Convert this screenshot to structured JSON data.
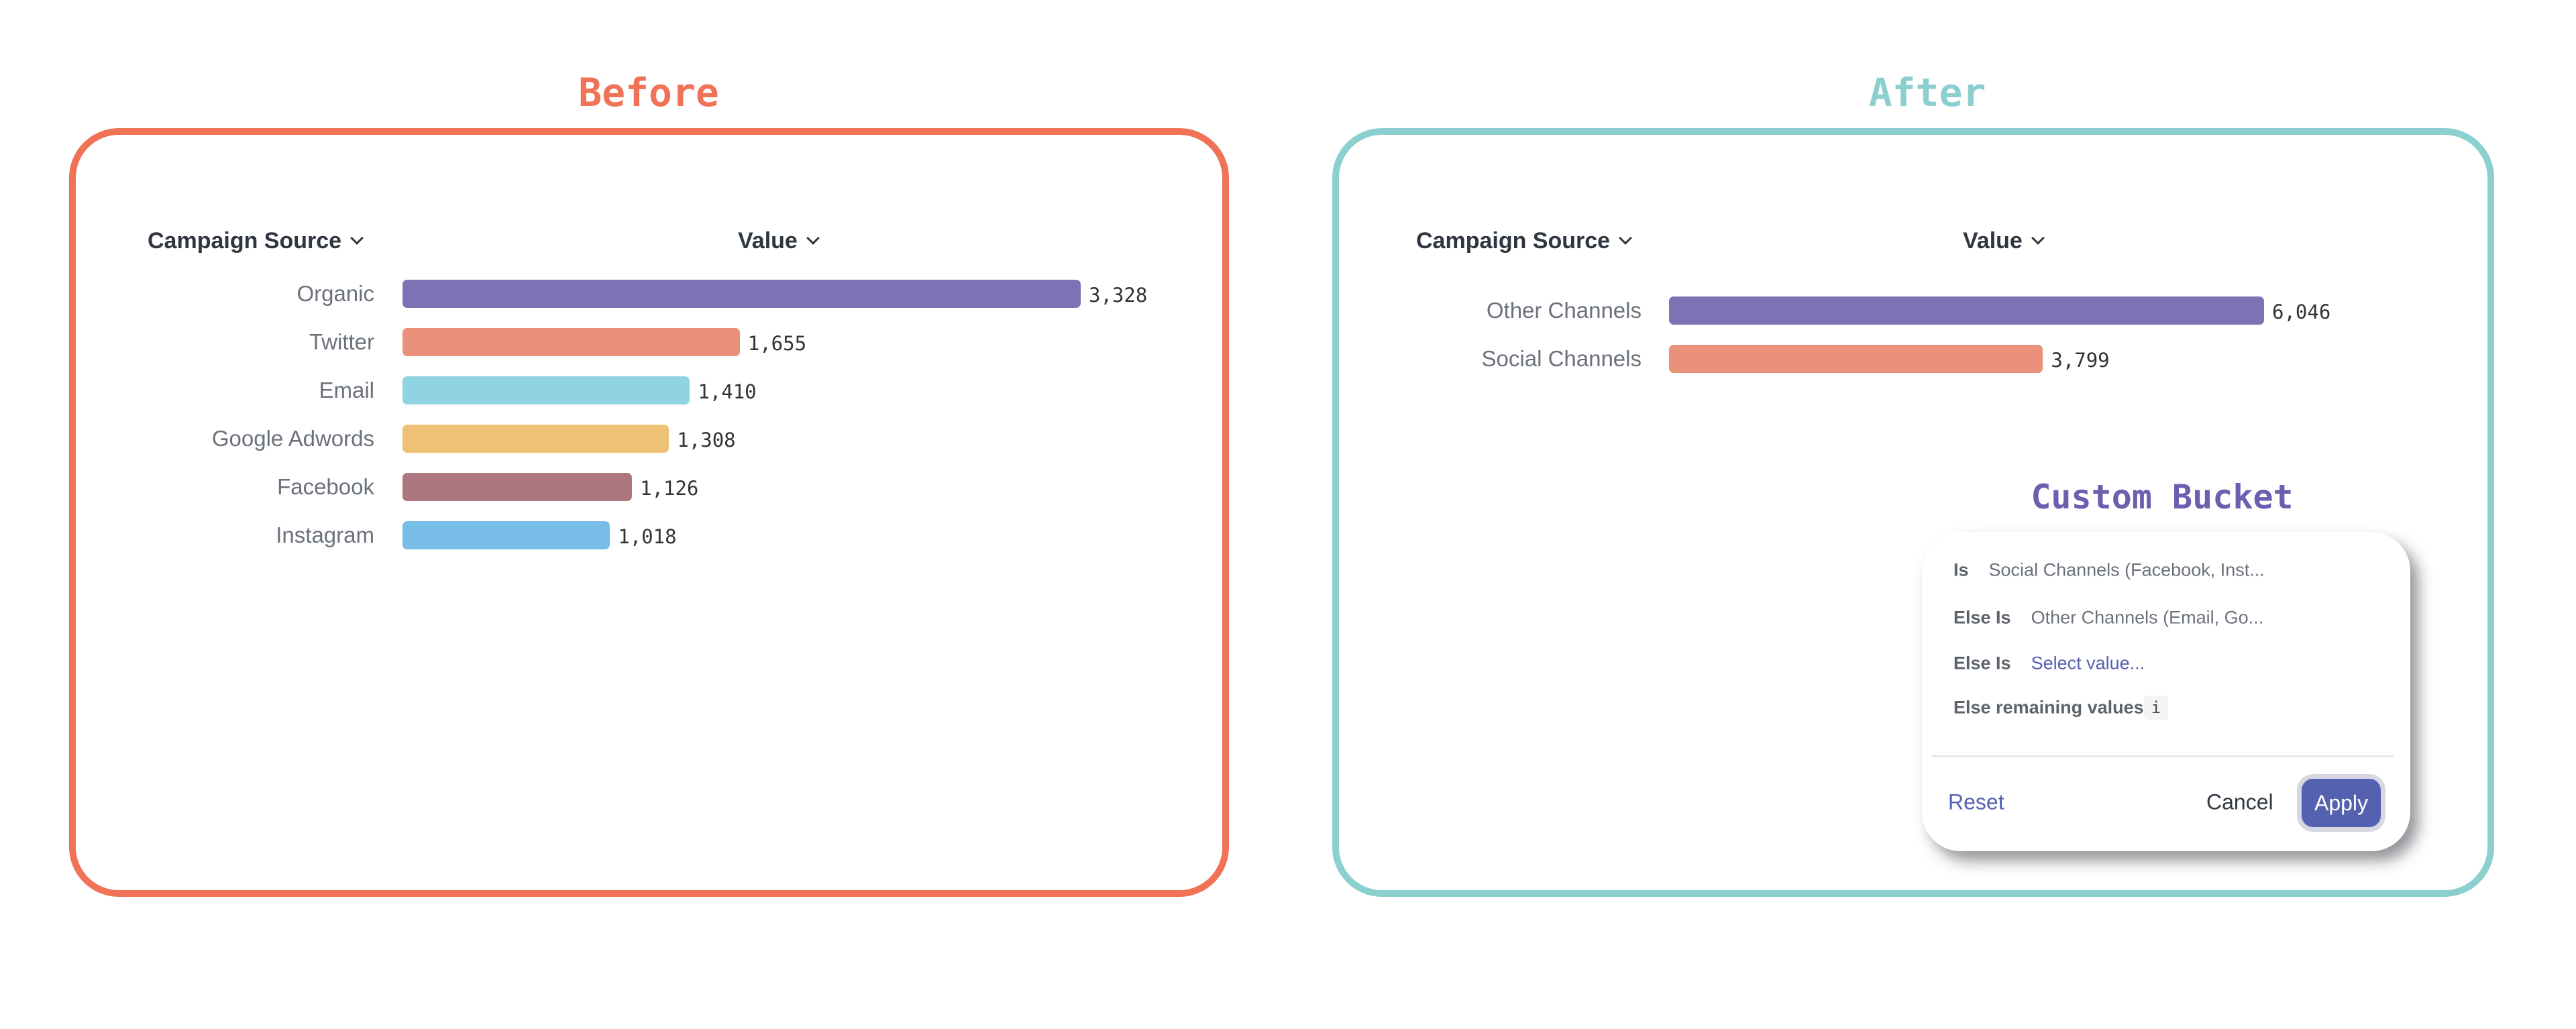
{
  "colors": {
    "before": "#f07358",
    "after": "#8ccfcf",
    "bucket_title": "#6b5fb0",
    "link": "#5461b0",
    "apply": "#5461b0"
  },
  "before": {
    "title": "Before",
    "header_dimension": "Campaign Source",
    "header_measure": "Value",
    "chart_data": {
      "type": "bar",
      "orientation": "horizontal",
      "categories": [
        "Organic",
        "Twitter",
        "Email",
        "Google Adwords",
        "Facebook",
        "Instagram"
      ],
      "values": [
        3328,
        1655,
        1410,
        1308,
        1126,
        1018
      ],
      "value_labels": [
        "3,328",
        "1,655",
        "1,410",
        "1,308",
        "1,126",
        "1,018"
      ],
      "colors": [
        "#7e72b5",
        "#ea917a",
        "#90d4e2",
        "#edc276",
        "#ae7780",
        "#78bde8"
      ]
    }
  },
  "after": {
    "title": "After",
    "header_dimension": "Campaign Source",
    "header_measure": "Value",
    "chart_data": {
      "type": "bar",
      "orientation": "horizontal",
      "categories": [
        "Other Channels",
        "Social Channels"
      ],
      "values": [
        6046,
        3799
      ],
      "value_labels": [
        "6,046",
        "3,799"
      ],
      "colors": [
        "#7e72b5",
        "#ea917a"
      ]
    }
  },
  "bucket": {
    "title": "Custom Bucket",
    "rows": [
      {
        "label": "Is",
        "value": "Social Channels (Facebook, Inst..."
      },
      {
        "label": "Else Is",
        "value": "Other Channels (Email, Go..."
      },
      {
        "label": "Else Is",
        "value": "Select value..."
      }
    ],
    "remaining_label": "Else remaining values",
    "info_glyph": "i",
    "reset": "Reset",
    "cancel": "Cancel",
    "apply": "Apply"
  }
}
